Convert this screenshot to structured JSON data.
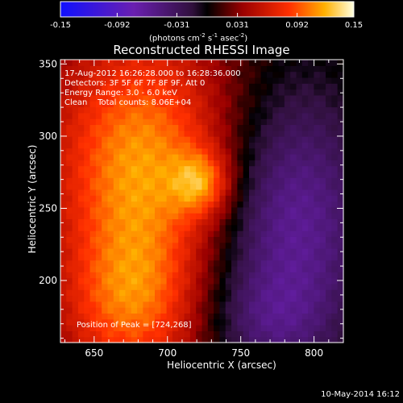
{
  "chart_data": {
    "type": "heatmap",
    "title": "Reconstructed RHESSI Image",
    "xlabel": "Heliocentric X (arcsec)",
    "ylabel": "Heliocentric Y (arcsec)",
    "xlim": [
      627,
      820
    ],
    "ylim": [
      157,
      353
    ],
    "xticks": [
      650,
      700,
      750,
      800
    ],
    "yticks": [
      200,
      250,
      300,
      350
    ],
    "colorbar": {
      "min": -0.15,
      "max": 0.15,
      "ticks": [
        "-0.15",
        "-0.092",
        "-0.031",
        "0.031",
        "0.092",
        "0.15"
      ],
      "tick_values": [
        -0.15,
        -0.092,
        -0.031,
        0.031,
        0.092,
        0.15
      ],
      "unit_prefix": "(photons cm",
      "unit_exp1": "-2",
      "unit_mid": " s",
      "unit_exp2": "-1",
      "unit_mid2": " asec",
      "unit_exp3": "-2",
      "unit_suffix": ")"
    },
    "annotations": [
      "17-Aug-2012 16:26:28.000 to 16:28:36.000",
      "Detectors: 3F 5F 6F 7F 8F 9F, Att 0",
      "Energy Range: 3.0 - 6.0 keV",
      "Clean    Total counts: 8.06E+04"
    ],
    "peak_label": "Position of Peak = [724,268]",
    "peak": [
      724,
      268
    ],
    "blobs": [
      {
        "x": 680,
        "y": 240,
        "sx": 38,
        "sy": 85,
        "amp": 0.075
      },
      {
        "x": 724,
        "y": 268,
        "sx": 14,
        "sy": 16,
        "amp": 0.065
      },
      {
        "x": 700,
        "y": 300,
        "sx": 60,
        "sy": 50,
        "amp": 0.035
      },
      {
        "x": 672,
        "y": 185,
        "sx": 30,
        "sy": 30,
        "amp": 0.03
      },
      {
        "x": 785,
        "y": 245,
        "sx": 40,
        "sy": 75,
        "amp": -0.085
      },
      {
        "x": 765,
        "y": 170,
        "sx": 30,
        "sy": 25,
        "amp": -0.03
      }
    ],
    "baseline": 0.02
  },
  "footer": {
    "timestamp": "10-May-2014 16:12"
  },
  "colors": {
    "background": "#000000",
    "foreground": "#ffffff"
  }
}
